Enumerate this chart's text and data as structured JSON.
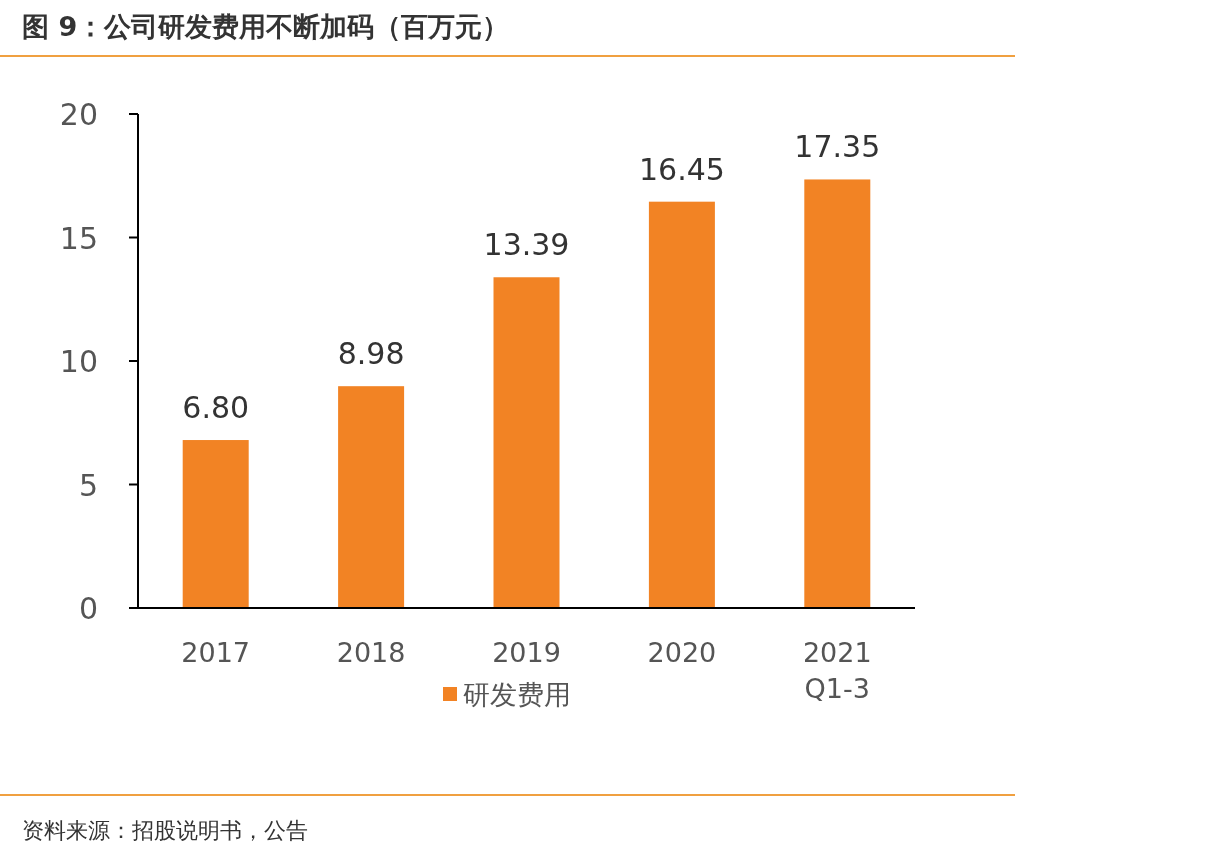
{
  "chart_data": {
    "type": "bar",
    "title": "图 9：公司研发费用不断加码（百万元）",
    "categories": [
      "2017",
      "2018",
      "2019",
      "2020",
      "2021 Q1-3"
    ],
    "series": [
      {
        "name": "研发费用",
        "color": "#f28324",
        "values": [
          6.8,
          8.98,
          13.39,
          16.45,
          17.35
        ],
        "value_labels": [
          "6.80",
          "8.98",
          "13.39",
          "16.45",
          "17.35"
        ]
      }
    ],
    "ylim": [
      0,
      20
    ],
    "yticks": [
      0,
      5,
      10,
      15,
      20
    ],
    "legend": "bottom",
    "grid": false,
    "annotations": [
      "资料来源：招股说明书，公告"
    ]
  }
}
